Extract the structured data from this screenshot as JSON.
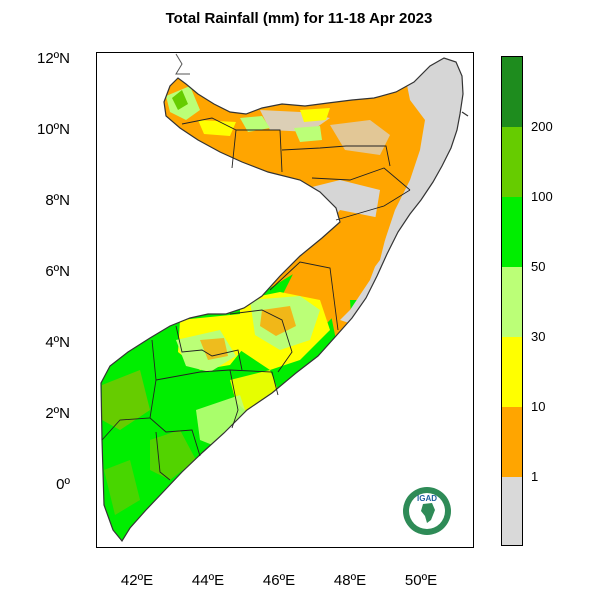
{
  "title": "Total Rainfall (mm) for 11-18 Apr 2023",
  "axes": {
    "y_ticks": [
      "12ºN",
      "10ºN",
      "8ºN",
      "6ºN",
      "4ºN",
      "2ºN",
      "0º"
    ],
    "x_ticks": [
      "42ºE",
      "44ºE",
      "46ºE",
      "48ºE",
      "50ºE"
    ]
  },
  "legend": {
    "labels": [
      "200",
      "100",
      "50",
      "30",
      "10",
      "1"
    ],
    "colors": [
      "#1e8c1e",
      "#66cc00",
      "#00ee00",
      "#bbff77",
      "#ffff00",
      "#ffa500",
      "#d9d9d9"
    ]
  },
  "map": {
    "colors": {
      "grey": "#d6d6d6",
      "orange": "#ffa500",
      "yellow": "#ffff00",
      "lightgreen": "#bbff77",
      "green": "#00ee00",
      "olivegreen": "#66cc00",
      "border": "#333333"
    }
  },
  "logo": {
    "text": "IGAD",
    "colors": {
      "ring": "#2e8b57",
      "center": "#ffffff",
      "text": "#1f5f9f"
    }
  }
}
